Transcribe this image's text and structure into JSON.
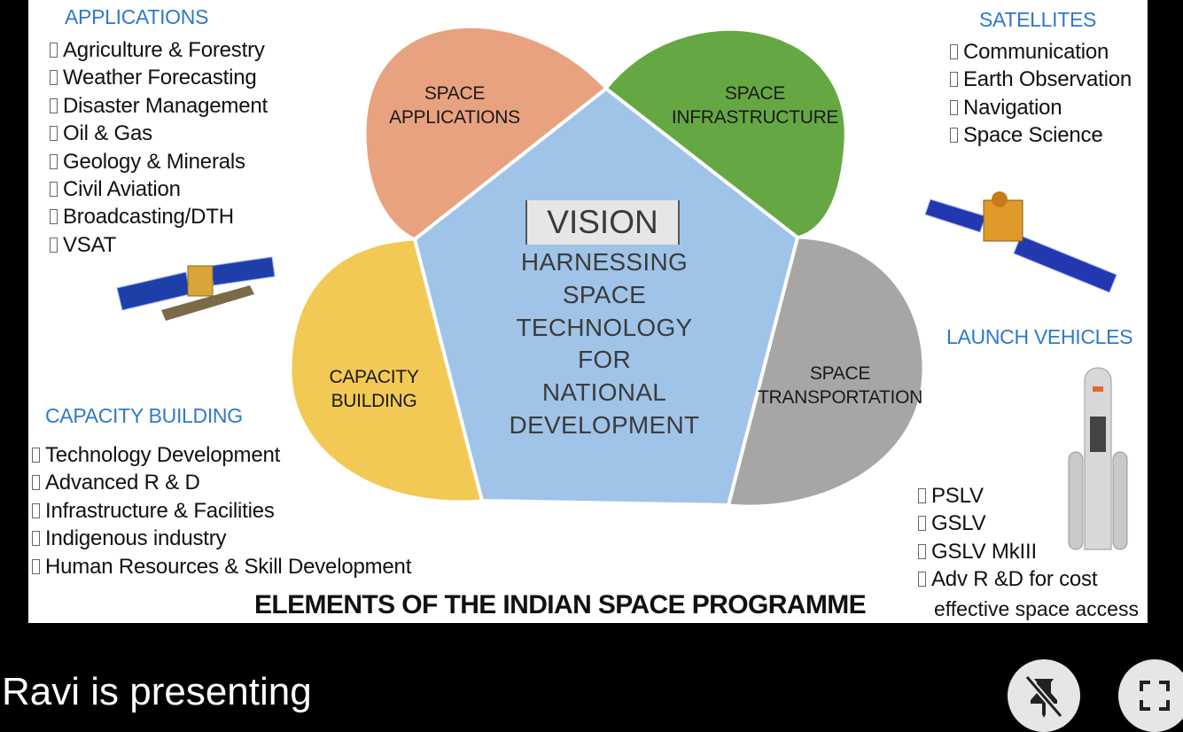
{
  "slide": {
    "title": "ELEMENTS OF THE INDIAN SPACE PROGRAMME",
    "vision_heading": "VISION",
    "vision_lines": [
      "HARNESSING",
      "SPACE",
      "TECHNOLOGY",
      "FOR",
      "NATIONAL",
      "DEVELOPMENT"
    ],
    "petals": {
      "applications": [
        "SPACE",
        "APPLICATIONS"
      ],
      "infrastructure": [
        "SPACE",
        "INFRASTRUCTURE"
      ],
      "capacity": [
        "CAPACITY",
        "BUILDING"
      ],
      "transportation": [
        "SPACE",
        "TRANSPORTATION"
      ]
    },
    "applications": {
      "heading": "APPLICATIONS",
      "items": [
        "Agriculture & Forestry",
        "Weather Forecasting",
        "Disaster Management",
        "Oil & Gas",
        "Geology & Minerals",
        "Civil Aviation",
        "Broadcasting/DTH",
        "VSAT"
      ]
    },
    "satellites": {
      "heading": "SATELLITES",
      "items": [
        "Communication",
        "Earth Observation",
        "Navigation",
        "Space Science"
      ]
    },
    "capacity_building": {
      "heading": "CAPACITY BUILDING",
      "items": [
        "Technology Development",
        "Advanced R & D",
        "Infrastructure & Facilities",
        "Indigenous industry",
        "Human Resources & Skill Development"
      ]
    },
    "launch_vehicles": {
      "heading": "LAUNCH VEHICLES",
      "items": [
        "PSLV",
        "GSLV",
        "GSLV MkIII",
        "Adv R &D for cost"
      ],
      "continuation": "effective space access"
    }
  },
  "colors": {
    "applications": "#e9a27f",
    "infrastructure": "#65a843",
    "capacity": "#f2c955",
    "transportation": "#a8a5a5",
    "pentagon": "#9fc4e8",
    "heading": "#2f79c9"
  },
  "presenter_text": "Ravi is presenting",
  "controls": {
    "pin_icon": "unpin-icon",
    "fullscreen_icon": "fullscreen-icon"
  }
}
